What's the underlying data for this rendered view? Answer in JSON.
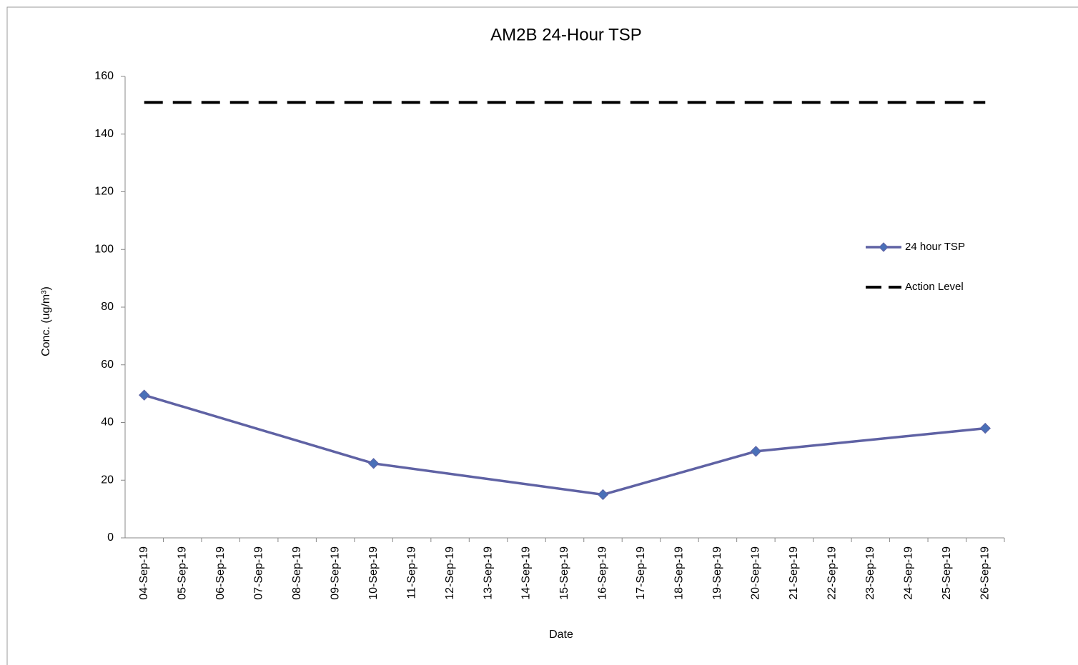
{
  "chart_data": {
    "type": "line",
    "title": "AM2B 24-Hour TSP",
    "xlabel": "Date",
    "ylabel": "Conc. (ug/m³)",
    "xticks": [
      "04-Sep-19",
      "05-Sep-19",
      "06-Sep-19",
      "07-Sep-19",
      "08-Sep-19",
      "09-Sep-19",
      "10-Sep-19",
      "11-Sep-19",
      "12-Sep-19",
      "13-Sep-19",
      "14-Sep-19",
      "15-Sep-19",
      "16-Sep-19",
      "17-Sep-19",
      "18-Sep-19",
      "19-Sep-19",
      "20-Sep-19",
      "21-Sep-19",
      "22-Sep-19",
      "23-Sep-19",
      "24-Sep-19",
      "25-Sep-19",
      "26-Sep-19"
    ],
    "ylim": [
      0,
      160
    ],
    "yticks": [
      0,
      20,
      40,
      60,
      80,
      100,
      120,
      140,
      160
    ],
    "legend": "right",
    "series": [
      {
        "name": "24 hour TSP",
        "color": "#5f62a4",
        "marker_color": "#4a70b8",
        "marker": "diamond",
        "x": [
          "04-Sep-19",
          "10-Sep-19",
          "16-Sep-19",
          "20-Sep-19",
          "26-Sep-19"
        ],
        "values": [
          49.5,
          25.8,
          15,
          30,
          38
        ]
      },
      {
        "name": "Action Level",
        "color": "#000000",
        "dashed": true,
        "x": [
          "04-Sep-19",
          "26-Sep-19"
        ],
        "values": [
          151,
          151
        ]
      }
    ]
  }
}
